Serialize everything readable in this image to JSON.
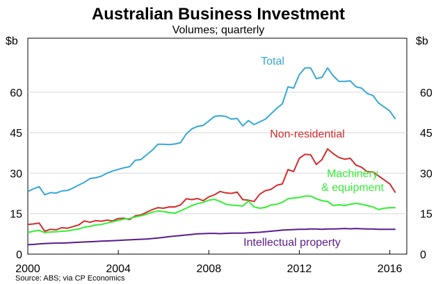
{
  "chart_data": {
    "type": "line",
    "title": "Australian Business Investment",
    "subtitle": "Volumes; quarterly",
    "y_unit_left": "$b",
    "y_unit_right": "$b",
    "xlim": [
      2000,
      2016.75
    ],
    "ylim": [
      0,
      80
    ],
    "x_ticks": [
      2000,
      2004,
      2008,
      2012,
      2016
    ],
    "x_tick_labels": [
      "2000",
      "2004",
      "2008",
      "2012",
      "2016"
    ],
    "y_ticks": [
      0,
      15,
      30,
      45,
      60
    ],
    "y_tick_labels": [
      "0",
      "15",
      "30",
      "45",
      "60"
    ],
    "grid": true,
    "source": "Source: ABS; via CP Economics",
    "series": [
      {
        "name": "Total",
        "color": "#33a8d8",
        "label_lines": [
          "Total"
        ],
        "x": [
          2000.0,
          2000.25,
          2000.5,
          2000.75,
          2001.0,
          2001.25,
          2001.5,
          2001.75,
          2002.0,
          2002.25,
          2002.5,
          2002.75,
          2003.0,
          2003.25,
          2003.5,
          2003.75,
          2004.0,
          2004.25,
          2004.5,
          2004.75,
          2005.0,
          2005.25,
          2005.5,
          2005.75,
          2006.0,
          2006.25,
          2006.5,
          2006.75,
          2007.0,
          2007.25,
          2007.5,
          2007.75,
          2008.0,
          2008.25,
          2008.5,
          2008.75,
          2009.0,
          2009.25,
          2009.5,
          2009.75,
          2010.0,
          2010.25,
          2010.5,
          2010.75,
          2011.0,
          2011.25,
          2011.5,
          2011.75,
          2012.0,
          2012.25,
          2012.5,
          2012.75,
          2013.0,
          2013.25,
          2013.5,
          2013.75,
          2014.0,
          2014.25,
          2014.5,
          2014.75,
          2015.0,
          2015.25,
          2015.5,
          2015.75,
          2016.0,
          2016.25
        ],
        "values": [
          23.2,
          24.2,
          25.0,
          22.0,
          22.8,
          22.6,
          23.4,
          23.6,
          24.5,
          25.6,
          26.6,
          28.0,
          28.3,
          28.9,
          30.0,
          30.8,
          31.4,
          32.0,
          32.4,
          34.8,
          35.0,
          36.8,
          38.5,
          40.7,
          40.7,
          40.6,
          40.8,
          41.3,
          44.5,
          46.4,
          47.3,
          47.7,
          49.3,
          51.0,
          51.3,
          51.0,
          50.0,
          50.3,
          47.5,
          49.5,
          48.0,
          49.0,
          50.0,
          52.0,
          54.0,
          55.7,
          62.0,
          61.5,
          66.5,
          69.0,
          69.0,
          65.0,
          65.5,
          69.0,
          66.0,
          64.0,
          64.0,
          64.2,
          62.0,
          61.5,
          59.5,
          58.8,
          56.0,
          54.5,
          53.0,
          50.0
        ]
      },
      {
        "name": "Non-residential",
        "color": "#d42a2a",
        "label_lines": [
          "Non-residential"
        ],
        "x": [
          2000.0,
          2000.25,
          2000.5,
          2000.75,
          2001.0,
          2001.25,
          2001.5,
          2001.75,
          2002.0,
          2002.25,
          2002.5,
          2002.75,
          2003.0,
          2003.25,
          2003.5,
          2003.75,
          2004.0,
          2004.25,
          2004.5,
          2004.75,
          2005.0,
          2005.25,
          2005.5,
          2005.75,
          2006.0,
          2006.25,
          2006.5,
          2006.75,
          2007.0,
          2007.25,
          2007.5,
          2007.75,
          2008.0,
          2008.25,
          2008.5,
          2008.75,
          2009.0,
          2009.25,
          2009.5,
          2009.75,
          2010.0,
          2010.25,
          2010.5,
          2010.75,
          2011.0,
          2011.25,
          2011.5,
          2011.75,
          2012.0,
          2012.25,
          2012.5,
          2012.75,
          2013.0,
          2013.25,
          2013.5,
          2013.75,
          2014.0,
          2014.25,
          2014.5,
          2014.75,
          2015.0,
          2015.25,
          2015.5,
          2015.75,
          2016.0,
          2016.25
        ],
        "values": [
          11.0,
          11.2,
          11.5,
          8.5,
          9.2,
          9.0,
          9.8,
          9.6,
          10.2,
          10.8,
          12.3,
          11.8,
          12.4,
          12.2,
          12.6,
          12.3,
          13.2,
          13.3,
          12.8,
          14.2,
          14.5,
          15.5,
          16.5,
          17.2,
          17.0,
          17.5,
          17.5,
          18.2,
          20.5,
          20.2,
          20.6,
          19.8,
          21.2,
          22.0,
          23.2,
          22.7,
          22.5,
          23.0,
          20.2,
          20.0,
          19.5,
          22.2,
          23.5,
          24.0,
          25.5,
          26.0,
          31.3,
          30.6,
          35.5,
          37.0,
          36.8,
          33.2,
          35.0,
          39.0,
          37.2,
          35.8,
          35.2,
          35.5,
          33.0,
          32.2,
          30.5,
          30.5,
          29.0,
          27.5,
          26.0,
          22.8
        ]
      },
      {
        "name": "Machinery & equipment",
        "color": "#33ee33",
        "label_lines": [
          "Machinery",
          "& equipment"
        ],
        "x": [
          2000.0,
          2000.25,
          2000.5,
          2000.75,
          2001.0,
          2001.25,
          2001.5,
          2001.75,
          2002.0,
          2002.25,
          2002.5,
          2002.75,
          2003.0,
          2003.25,
          2003.5,
          2003.75,
          2004.0,
          2004.25,
          2004.5,
          2004.75,
          2005.0,
          2005.25,
          2005.5,
          2005.75,
          2006.0,
          2006.25,
          2006.5,
          2006.75,
          2007.0,
          2007.25,
          2007.5,
          2007.75,
          2008.0,
          2008.25,
          2008.5,
          2008.75,
          2009.0,
          2009.25,
          2009.5,
          2009.75,
          2010.0,
          2010.25,
          2010.5,
          2010.75,
          2011.0,
          2011.25,
          2011.5,
          2011.75,
          2012.0,
          2012.25,
          2012.5,
          2012.75,
          2013.0,
          2013.25,
          2013.5,
          2013.75,
          2014.0,
          2014.25,
          2014.5,
          2014.75,
          2015.0,
          2015.25,
          2015.5,
          2015.75,
          2016.0,
          2016.25
        ],
        "values": [
          8.0,
          8.5,
          8.8,
          8.0,
          8.2,
          8.3,
          8.5,
          8.6,
          9.0,
          9.3,
          10.0,
          10.3,
          10.8,
          11.0,
          11.5,
          12.0,
          12.5,
          13.0,
          13.2,
          13.8,
          14.2,
          14.8,
          15.5,
          16.0,
          15.8,
          15.4,
          15.2,
          16.0,
          17.0,
          18.0,
          18.7,
          19.2,
          20.0,
          20.3,
          19.5,
          18.5,
          18.2,
          18.0,
          17.8,
          19.7,
          17.5,
          17.0,
          17.3,
          18.2,
          18.5,
          19.2,
          20.5,
          20.8,
          21.0,
          21.5,
          21.5,
          20.5,
          19.8,
          19.5,
          18.0,
          18.3,
          18.0,
          18.5,
          18.8,
          18.5,
          18.0,
          17.5,
          16.5,
          17.0,
          17.2,
          17.2
        ]
      },
      {
        "name": "Intellectual property",
        "color": "#5a1a8c",
        "label_lines": [
          "Intellectual property"
        ],
        "x": [
          2000.0,
          2000.25,
          2000.5,
          2000.75,
          2001.0,
          2001.25,
          2001.5,
          2001.75,
          2002.0,
          2002.25,
          2002.5,
          2002.75,
          2003.0,
          2003.25,
          2003.5,
          2003.75,
          2004.0,
          2004.25,
          2004.5,
          2004.75,
          2005.0,
          2005.25,
          2005.5,
          2005.75,
          2006.0,
          2006.25,
          2006.5,
          2006.75,
          2007.0,
          2007.25,
          2007.5,
          2007.75,
          2008.0,
          2008.25,
          2008.5,
          2008.75,
          2009.0,
          2009.25,
          2009.5,
          2009.75,
          2010.0,
          2010.25,
          2010.5,
          2010.75,
          2011.0,
          2011.25,
          2011.5,
          2011.75,
          2012.0,
          2012.25,
          2012.5,
          2012.75,
          2013.0,
          2013.25,
          2013.5,
          2013.75,
          2014.0,
          2014.25,
          2014.5,
          2014.75,
          2015.0,
          2015.25,
          2015.5,
          2015.75,
          2016.0,
          2016.25
        ],
        "values": [
          3.5,
          3.6,
          3.8,
          3.9,
          4.0,
          4.1,
          4.1,
          4.2,
          4.3,
          4.4,
          4.5,
          4.6,
          4.7,
          4.8,
          4.9,
          5.0,
          5.1,
          5.2,
          5.3,
          5.4,
          5.5,
          5.6,
          5.8,
          6.0,
          6.2,
          6.5,
          6.7,
          6.9,
          7.1,
          7.3,
          7.5,
          7.6,
          7.7,
          7.7,
          7.6,
          7.7,
          7.8,
          7.8,
          7.8,
          7.9,
          8.0,
          8.1,
          8.3,
          8.5,
          8.7,
          8.9,
          9.0,
          9.1,
          9.2,
          9.2,
          9.3,
          9.3,
          9.2,
          9.3,
          9.3,
          9.4,
          9.5,
          9.4,
          9.5,
          9.4,
          9.3,
          9.3,
          9.2,
          9.2,
          9.2,
          9.2
        ]
      }
    ]
  }
}
